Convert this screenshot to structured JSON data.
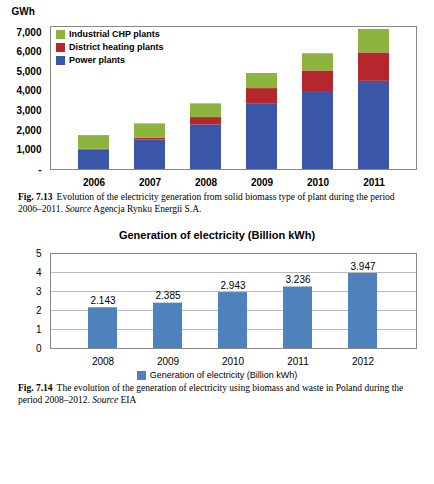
{
  "chart_data": [
    {
      "type": "bar",
      "stacked": true,
      "y_label": "GWh",
      "categories": [
        "2006",
        "2007",
        "2008",
        "2009",
        "2010",
        "2011"
      ],
      "series": [
        {
          "name": "Power plants",
          "color": "#3a56a8",
          "values": [
            1000,
            1500,
            2280,
            3330,
            3980,
            4500
          ]
        },
        {
          "name": "District heating plants",
          "color": "#b5272d",
          "values": [
            30,
            100,
            370,
            800,
            1050,
            1450
          ]
        },
        {
          "name": "Industrial CHP plants",
          "color": "#8db43e",
          "values": [
            700,
            730,
            700,
            770,
            880,
            1200
          ]
        }
      ],
      "ylim": [
        0,
        7300
      ],
      "yticks": [
        {
          "value": 0,
          "label": "-"
        },
        {
          "value": 1000,
          "label": "1,000"
        },
        {
          "value": 2000,
          "label": "2,000"
        },
        {
          "value": 3000,
          "label": "3,000"
        },
        {
          "value": 4000,
          "label": "4,000"
        },
        {
          "value": 5000,
          "label": "5,000"
        },
        {
          "value": 6000,
          "label": "6,000"
        },
        {
          "value": 7000,
          "label": "7,000"
        }
      ],
      "grid": false,
      "legend": "top-left",
      "figure": "Fig. 7.13",
      "caption": "Evolution of the electricity generation from solid biomass type of plant during the period 2006–2011.",
      "source_label": "Source",
      "source": "Agencja Rynku Energii S.A."
    },
    {
      "type": "bar",
      "title": "Generation of electricity (Billion kWh)",
      "categories": [
        "2008",
        "2009",
        "2010",
        "2011",
        "2012"
      ],
      "series": [
        {
          "name": "Generation of electricity (Billion kWh)",
          "color": "#4f81bd",
          "values": [
            2.143,
            2.385,
            2.943,
            3.236,
            3.947
          ]
        }
      ],
      "ylim": [
        0,
        5
      ],
      "yticks": [
        0,
        1,
        2,
        3,
        4,
        5
      ],
      "grid": true,
      "data_labels": true,
      "legend": "bottom",
      "figure": "Fig. 7.14",
      "caption": "The evolution of the generation of electricity using biomass and waste in Poland during the period 2008–2012.",
      "source_label": "Source",
      "source": "EIA"
    }
  ]
}
